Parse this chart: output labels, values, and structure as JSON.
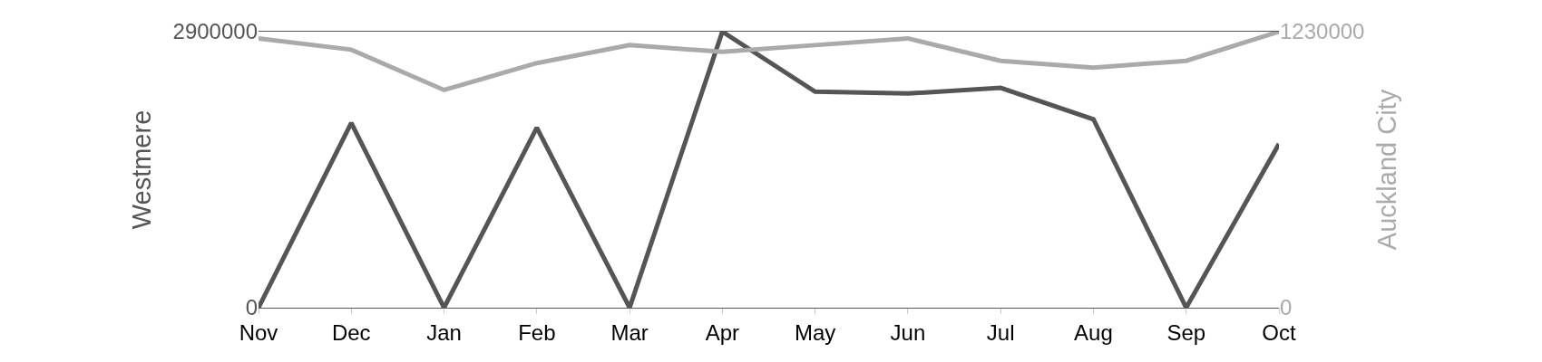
{
  "chart_data": {
    "type": "line",
    "categories": [
      "Nov",
      "Dec",
      "Jan",
      "Feb",
      "Mar",
      "Apr",
      "May",
      "Jun",
      "Jul",
      "Aug",
      "Sep",
      "Oct"
    ],
    "ylabel": "Westmere",
    "y2label": "Auckland City",
    "series": [
      {
        "color": "#555555",
        "values": [
          0,
          1940000,
          0,
          1890000,
          0,
          2900000,
          2270000,
          2250000,
          2310000,
          1980000,
          0,
          1720000
        ]
      },
      {
        "color": "#aaaaaa",
        "axis": "y2",
        "values": [
          1200000,
          1150000,
          970000,
          1090000,
          1170000,
          1140000,
          1170000,
          1200000,
          1100000,
          1070000,
          1100000,
          1230000
        ]
      }
    ],
    "ylim": [
      0,
      2900000
    ],
    "yticks": [
      0,
      2900000
    ],
    "y2lim": [
      0,
      1230000
    ],
    "y2ticks": [
      0,
      1230000
    ],
    "legend": false,
    "marker": "none",
    "line_style": "solid"
  }
}
